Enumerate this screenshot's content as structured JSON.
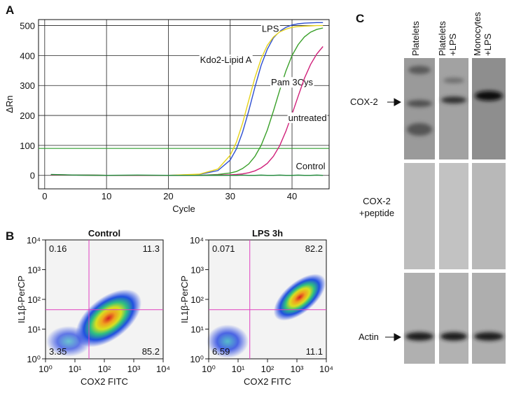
{
  "panel_labels": [
    "A",
    "B",
    "C"
  ],
  "chart_data": [
    {
      "type": "line",
      "ylabel": "ΔRn",
      "xlabel": "Cycle",
      "xlim": [
        -1,
        46
      ],
      "ylim": [
        -45,
        520
      ],
      "xticks": [
        0,
        10,
        20,
        30,
        40
      ],
      "yticks": [
        0,
        100,
        200,
        300,
        400,
        500
      ],
      "grid": true,
      "threshold": 90,
      "threshold_color": "#2e9e2e",
      "x": [
        1,
        5,
        10,
        15,
        20,
        25,
        28,
        30,
        31,
        32,
        33,
        34,
        35,
        36,
        37,
        38,
        39,
        40,
        41,
        42,
        43,
        44,
        45
      ],
      "series": [
        {
          "name": "LPS",
          "color": "#2f4fd0",
          "values": [
            2,
            1,
            0,
            0,
            0,
            3,
            16,
            51,
            88,
            144,
            215,
            294,
            367,
            421,
            459,
            481,
            494,
            502,
            506,
            508,
            509,
            510,
            510
          ]
        },
        {
          "name": "Kdo2-Lipid A",
          "color": "#e6d21a",
          "values": [
            2,
            1,
            0,
            0,
            0,
            4,
            21,
            67,
            111,
            174,
            250,
            326,
            389,
            434,
            462,
            479,
            488,
            494,
            497,
            498,
            499,
            500,
            500
          ]
        },
        {
          "name": "Pam 3Cys",
          "color": "#3aa02a",
          "values": [
            2,
            1,
            0,
            0,
            0,
            0,
            3,
            8,
            13,
            23,
            38,
            63,
            100,
            151,
            215,
            284,
            348,
            400,
            437,
            462,
            478,
            487,
            492
          ]
        },
        {
          "name": "untreated",
          "color": "#d0207a",
          "values": [
            2,
            1,
            0,
            0,
            0,
            0,
            1,
            2,
            3,
            5,
            9,
            15,
            25,
            40,
            64,
            99,
            147,
            204,
            265,
            324,
            370,
            405,
            430
          ]
        },
        {
          "name": "Control",
          "color": "#1f8a3a",
          "values": [
            3,
            1,
            0,
            1,
            0,
            0,
            0,
            0,
            0,
            1,
            0,
            0,
            1,
            0,
            0,
            1,
            0,
            0,
            1,
            0,
            0,
            1,
            0
          ]
        }
      ]
    },
    {
      "type": "scatter",
      "title": "Control",
      "ylabel": "IL1β-PerCP",
      "xlabel": "COX2 FITC",
      "log_scale": true,
      "xlim": [
        1,
        10000
      ],
      "ylim": [
        1,
        10000
      ],
      "xticks": [
        {
          "value": 1,
          "label": "10⁰"
        },
        {
          "value": 10,
          "label": "10¹"
        },
        {
          "value": 100,
          "label": "10²"
        },
        {
          "value": 1000,
          "label": "10³"
        },
        {
          "value": 10000,
          "label": "10⁴"
        }
      ],
      "yticks": [
        {
          "value": 1,
          "label": "10⁰"
        },
        {
          "value": 10,
          "label": "10¹"
        },
        {
          "value": 100,
          "label": "10²"
        },
        {
          "value": 1000,
          "label": "10³"
        },
        {
          "value": 10000,
          "label": "10⁴"
        }
      ],
      "gate_x": 30,
      "gate_y": 45,
      "gate_color": "#e040c0",
      "quadrants": [
        0.16,
        11.3,
        3.35,
        85.2
      ]
    },
    {
      "type": "scatter",
      "title": "LPS 3h",
      "ylabel": "IL1β-PerCP",
      "xlabel": "COX2 FITC",
      "log_scale": true,
      "xlim": [
        1,
        10000
      ],
      "ylim": [
        1,
        10000
      ],
      "xticks": [
        {
          "value": 1,
          "label": "10⁰"
        },
        {
          "value": 10,
          "label": "10¹"
        },
        {
          "value": 100,
          "label": "10²"
        },
        {
          "value": 1000,
          "label": "10³"
        },
        {
          "value": 10000,
          "label": "10⁴"
        }
      ],
      "yticks": [
        {
          "value": 1,
          "label": "10⁰"
        },
        {
          "value": 10,
          "label": "10¹"
        },
        {
          "value": 100,
          "label": "10²"
        },
        {
          "value": 1000,
          "label": "10³"
        },
        {
          "value": 10000,
          "label": "10⁴"
        }
      ],
      "gate_x": 25,
      "gate_y": 45,
      "gate_color": "#e040c0",
      "quadrants": [
        0.071,
        82.2,
        6.59,
        11.1
      ]
    }
  ],
  "blot": {
    "columns": [
      [
        "Platelets"
      ],
      [
        "Platelets",
        "+LPS"
      ],
      [
        "Monocytes",
        "+LPS"
      ]
    ],
    "rows": [
      [
        "COX-2"
      ],
      [
        "COX-2",
        "+peptide"
      ],
      [
        "Actin"
      ]
    ]
  }
}
